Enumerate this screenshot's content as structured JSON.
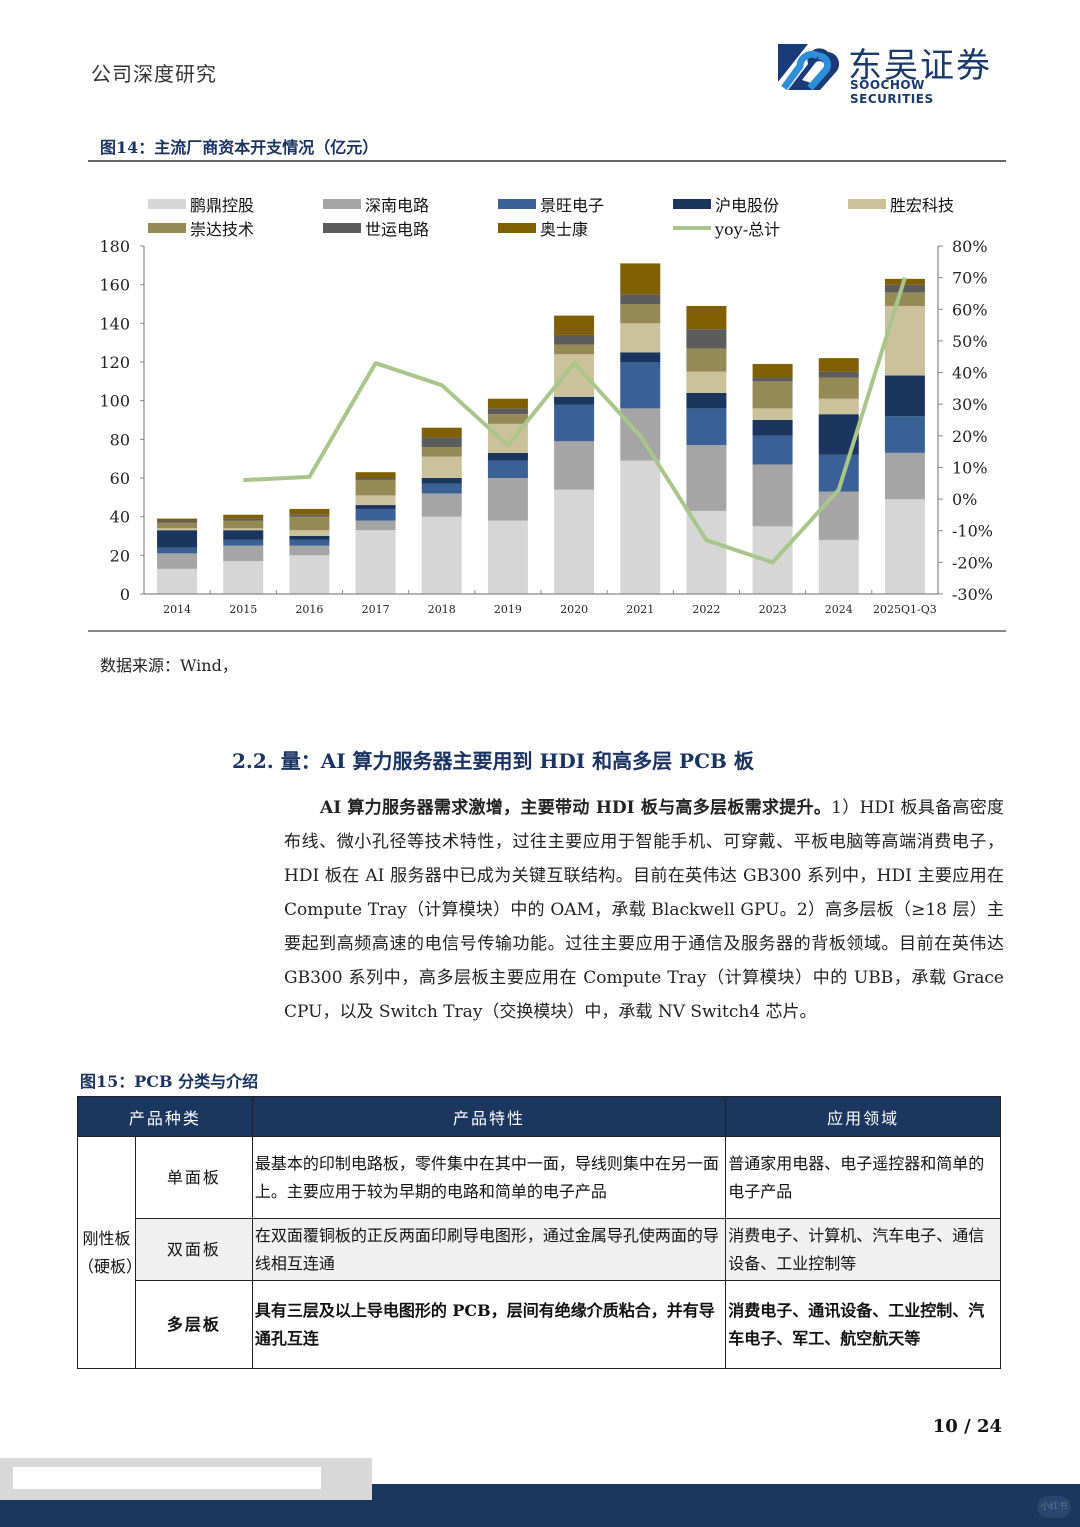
{
  "header": {
    "doc_type": "公司深度研究",
    "logo_cn": "东吴证券",
    "logo_en": "SOOCHOW SECURITIES"
  },
  "figure14": {
    "title": "图14：主流厂商资本开支情况（亿元）",
    "source": "数据来源：Wind，"
  },
  "chart_data": {
    "type": "bar",
    "stacked": true,
    "title": "主流厂商资本开支情况（亿元）",
    "xlabel": "",
    "ylabel": "",
    "ylim": [
      0,
      180
    ],
    "y_ticks": [
      0,
      20,
      40,
      60,
      80,
      100,
      120,
      140,
      160,
      180
    ],
    "y2lim": [
      -0.3,
      0.8
    ],
    "y2_ticks": [
      "-30%",
      "-20%",
      "-10%",
      "0%",
      "10%",
      "20%",
      "30%",
      "40%",
      "50%",
      "60%",
      "70%",
      "80%"
    ],
    "grid": false,
    "legend_position": "top",
    "categories": [
      "2014",
      "2015",
      "2016",
      "2017",
      "2018",
      "2019",
      "2020",
      "2021",
      "2022",
      "2023",
      "2024",
      "2025Q1-Q3"
    ],
    "series": [
      {
        "name": "鹏鼎控股",
        "color": "#d6d6d6",
        "values": [
          13,
          17,
          20,
          33,
          40,
          38,
          54,
          69,
          43,
          35,
          28,
          49
        ]
      },
      {
        "name": "深南电路",
        "color": "#a5a5a5",
        "values": [
          8,
          8,
          5,
          5,
          12,
          22,
          25,
          27,
          34,
          32,
          25,
          24
        ]
      },
      {
        "name": "景旺电子",
        "color": "#3a6196",
        "values": [
          3,
          3,
          3,
          6,
          5,
          9,
          19,
          24,
          19,
          15,
          19,
          19
        ]
      },
      {
        "name": "沪电股份",
        "color": "#1a355e",
        "values": [
          9,
          5,
          2,
          2,
          3,
          4,
          4,
          5,
          8,
          8,
          21,
          21
        ]
      },
      {
        "name": "胜宏科技",
        "color": "#cbc19a",
        "values": [
          1,
          1,
          3,
          5,
          11,
          15,
          22,
          15,
          11,
          6,
          8,
          36
        ]
      },
      {
        "name": "崇达技术",
        "color": "#958a55",
        "values": [
          3,
          4,
          7,
          8,
          5,
          5,
          5,
          10,
          12,
          14,
          11,
          7
        ]
      },
      {
        "name": "世运电路",
        "color": "#5c5c5c",
        "values": [
          1,
          1,
          1,
          1,
          5,
          3,
          5,
          5,
          10,
          2,
          3,
          4
        ]
      },
      {
        "name": "奥士康",
        "color": "#7f5f00",
        "values": [
          1,
          2,
          3,
          3,
          5,
          5,
          10,
          16,
          12,
          7,
          7,
          3
        ]
      }
    ],
    "line_series": {
      "name": "yoy-总计",
      "color": "#a9c68a",
      "axis": "right",
      "values": [
        null,
        0.06,
        0.07,
        0.43,
        0.36,
        0.17,
        0.43,
        0.2,
        -0.13,
        -0.2,
        0.03,
        0.7
      ]
    }
  },
  "section": {
    "title": "2.2.  量：AI 算力服务器主要用到 HDI 和高多层 PCB 板",
    "lead": "AI 算力服务器需求激增，主要带动 HDI 板与高多层板需求提升。",
    "body": "1）HDI 板具备高密度布线、微小孔径等技术特性，过往主要应用于智能手机、可穿戴、平板电脑等高端消费电子，HDI 板在 AI 服务器中已成为关键互联结构。目前在英伟达 GB300 系列中，HDI 主要应用在 Compute Tray（计算模块）中的 OAM，承载 Blackwell GPU。2）高多层板（≥18 层）主要起到高频高速的电信号传输功能。过往主要应用于通信及服务器的背板领域。目前在英伟达 GB300 系列中，高多层板主要应用在 Compute Tray（计算模块）中的 UBB，承载 Grace CPU，以及 Switch Tray（交换模块）中，承载 NV Switch4 芯片。"
  },
  "figure15": {
    "title": "图15：PCB 分类与介绍",
    "headers": [
      "产品种类",
      "产品特性",
      "应用领域"
    ],
    "group_label": "刚性板（硬板）",
    "rows": [
      {
        "type": "单面板",
        "feature": "最基本的印制电路板，零件集中在其中一面，导线则集中在另一面上。主要应用于较为早期的电路和简单的电子产品",
        "application": "普通家用电器、电子遥控器和简单的电子产品"
      },
      {
        "type": "双面板",
        "feature": "在双面覆铜板的正反两面印刷导电图形，通过金属导孔使两面的导线相互连通",
        "application": "消费电子、计算机、汽车电子、通信设备、工业控制等"
      },
      {
        "type": "多层板",
        "feature": "具有三层及以上导电图形的 PCB，层间有绝缘介质粘合，并有导通孔互连",
        "application": "消费电子、通讯设备、工业控制、汽车电子、军工、航空航天等"
      }
    ]
  },
  "footer": {
    "page": "10  /  24",
    "watermark": "小红书"
  }
}
